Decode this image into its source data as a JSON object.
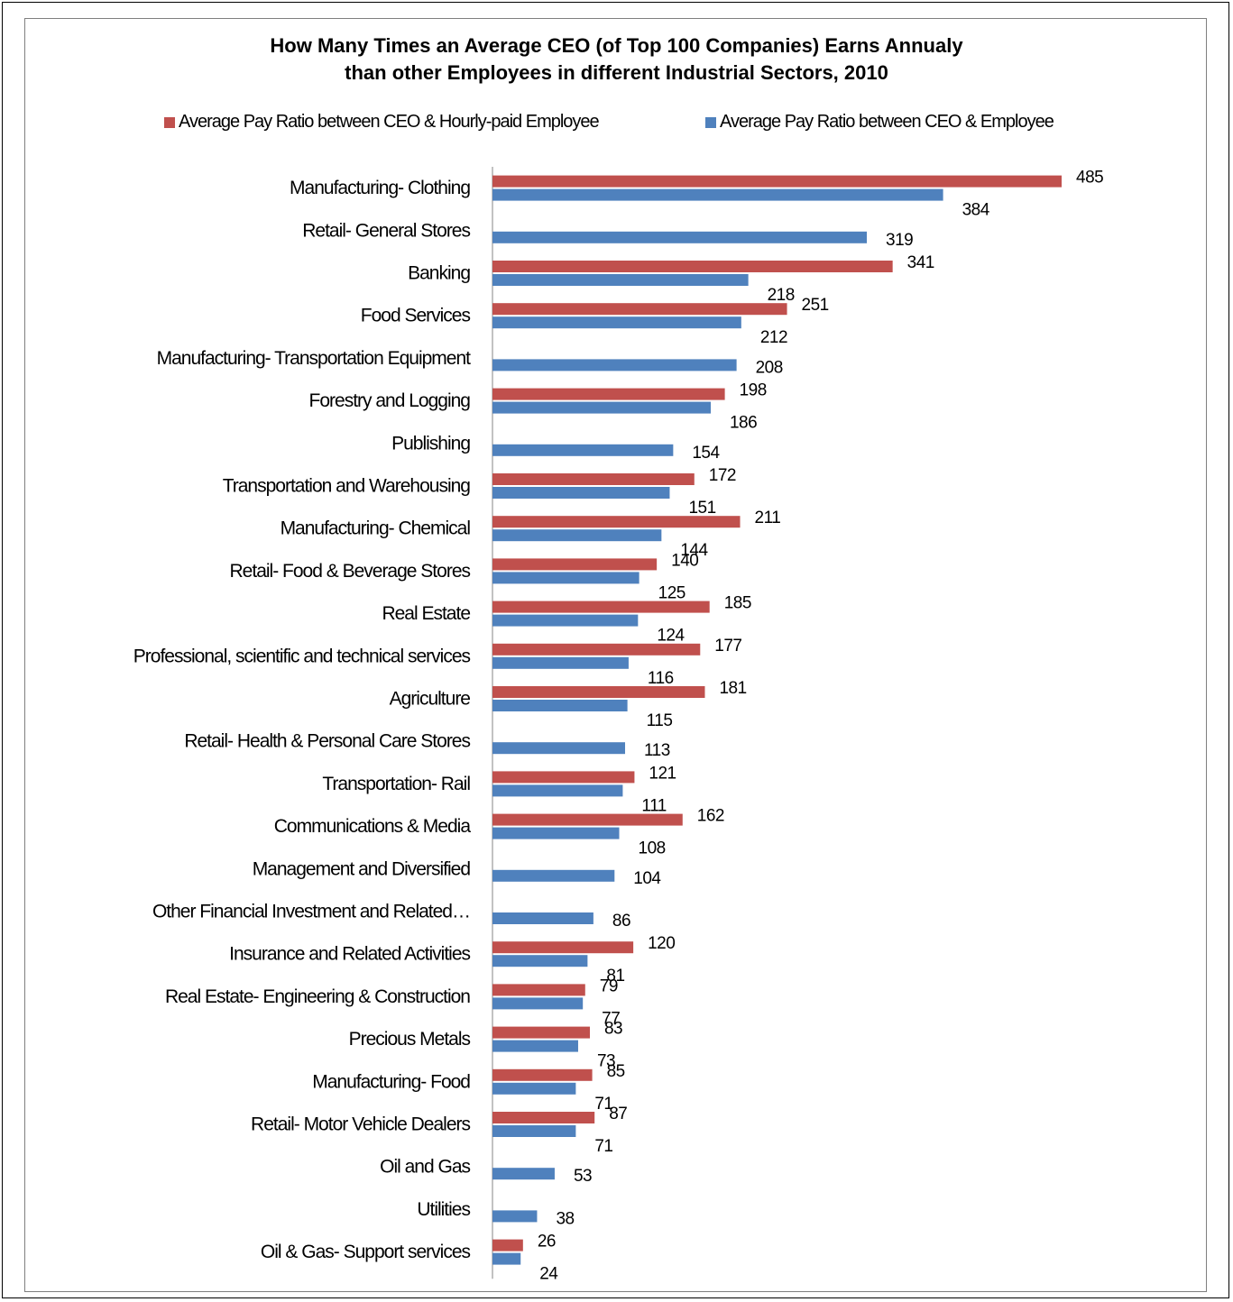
{
  "chart_data": {
    "type": "bar",
    "orientation": "horizontal",
    "title_lines": [
      "How Many Times an Average CEO (of Top 100 Companies) Earns Annualy",
      "than other Employees in different Industrial Sectors, 2010"
    ],
    "legend_position": "top",
    "categories": [
      "Manufacturing- Clothing",
      "Retail- General Stores",
      "Banking",
      "Food Services",
      "Manufacturing- Transportation Equipment",
      "Forestry and Logging",
      "Publishing",
      "Transportation and Warehousing",
      "Manufacturing- Chemical",
      "Retail- Food & Beverage Stores",
      "Real Estate",
      "Professional, scientific and technical services",
      "Agriculture",
      "Retail- Health & Personal Care Stores",
      "Transportation- Rail",
      "Communications & Media",
      "Management and Diversified",
      "Other Financial Investment and Related…",
      "Insurance and Related Activities",
      "Real Estate- Engineering & Construction",
      "Precious Metals",
      "Manufacturing- Food",
      "Retail- Motor Vehicle Dealers",
      "Oil and Gas",
      "Utilities",
      "Oil & Gas- Support services"
    ],
    "series": [
      {
        "name": "Average Pay Ratio between CEO & Hourly-paid Employee",
        "color": "#c0504d",
        "values": [
          485,
          null,
          341,
          251,
          null,
          198,
          null,
          172,
          211,
          140,
          185,
          177,
          181,
          null,
          121,
          162,
          null,
          null,
          120,
          79,
          83,
          85,
          87,
          null,
          null,
          26
        ]
      },
      {
        "name": "Average Pay Ratio between CEO & Employee",
        "color": "#4f81bd",
        "values": [
          384,
          319,
          218,
          212,
          208,
          186,
          154,
          151,
          144,
          125,
          124,
          116,
          115,
          113,
          111,
          108,
          104,
          86,
          81,
          77,
          73,
          71,
          71,
          53,
          38,
          24
        ]
      }
    ],
    "xlim": [
      0,
      485
    ],
    "grid": false
  }
}
